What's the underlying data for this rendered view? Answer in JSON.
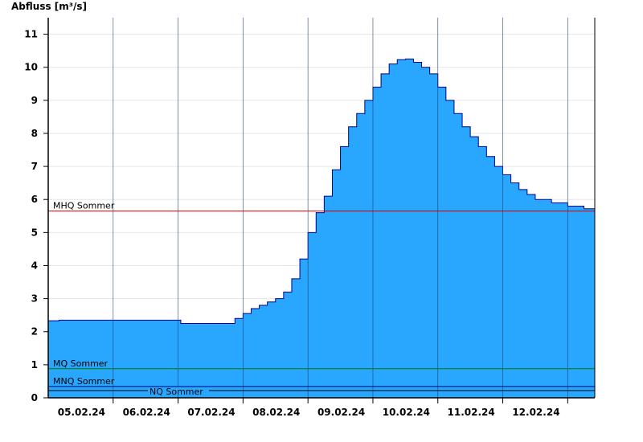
{
  "chart_data": {
    "type": "area",
    "title": "",
    "xlabel": "",
    "ylabel": "Abfluss [m³/s]",
    "ylim": [
      0,
      11.5
    ],
    "yticks": [
      0,
      1,
      2,
      3,
      4,
      5,
      6,
      7,
      8,
      9,
      10,
      11
    ],
    "x_domain": [
      "04.02.24 12:00",
      "12.02.24 22:00"
    ],
    "x_tick_labels": [
      "05.02.24",
      "06.02.24",
      "07.02.24",
      "08.02.24",
      "09.02.24",
      "10.02.24",
      "11.02.24",
      "12.02.24"
    ],
    "day_boundaries": [
      "05.02.24 12:00",
      "06.02.24 12:00",
      "07.02.24 12:00",
      "08.02.24 12:00",
      "09.02.24 12:00",
      "10.02.24 12:00",
      "11.02.24 12:00",
      "12.02.24 12:00"
    ],
    "grid": true,
    "fill_color": "#29a7ff",
    "line_color": "#00008b",
    "series": [
      {
        "values": [
          [
            "04.02.24 12:00",
            2.33
          ],
          [
            "04.02.24 16:00",
            2.35
          ],
          [
            "05.02.24 12:00",
            2.35
          ],
          [
            "06.02.24 12:00",
            2.35
          ],
          [
            "06.02.24 13:00",
            2.25
          ],
          [
            "07.02.24 06:00",
            2.25
          ],
          [
            "07.02.24 09:00",
            2.4
          ],
          [
            "07.02.24 12:00",
            2.55
          ],
          [
            "07.02.24 15:00",
            2.7
          ],
          [
            "07.02.24 18:00",
            2.8
          ],
          [
            "07.02.24 21:00",
            2.9
          ],
          [
            "08.02.24 00:00",
            3.0
          ],
          [
            "08.02.24 03:00",
            3.2
          ],
          [
            "08.02.24 06:00",
            3.6
          ],
          [
            "08.02.24 09:00",
            4.2
          ],
          [
            "08.02.24 12:00",
            5.0
          ],
          [
            "08.02.24 15:00",
            5.6
          ],
          [
            "08.02.24 18:00",
            6.1
          ],
          [
            "08.02.24 21:00",
            6.9
          ],
          [
            "09.02.24 00:00",
            7.6
          ],
          [
            "09.02.24 03:00",
            8.2
          ],
          [
            "09.02.24 06:00",
            8.6
          ],
          [
            "09.02.24 09:00",
            9.0
          ],
          [
            "09.02.24 12:00",
            9.4
          ],
          [
            "09.02.24 15:00",
            9.8
          ],
          [
            "09.02.24 18:00",
            10.1
          ],
          [
            "09.02.24 21:00",
            10.23
          ],
          [
            "10.02.24 00:00",
            10.25
          ],
          [
            "10.02.24 03:00",
            10.15
          ],
          [
            "10.02.24 06:00",
            10.0
          ],
          [
            "10.02.24 09:00",
            9.8
          ],
          [
            "10.02.24 12:00",
            9.4
          ],
          [
            "10.02.24 15:00",
            9.0
          ],
          [
            "10.02.24 18:00",
            8.6
          ],
          [
            "10.02.24 21:00",
            8.2
          ],
          [
            "11.02.24 00:00",
            7.9
          ],
          [
            "11.02.24 03:00",
            7.6
          ],
          [
            "11.02.24 06:00",
            7.3
          ],
          [
            "11.02.24 09:00",
            7.0
          ],
          [
            "11.02.24 12:00",
            6.75
          ],
          [
            "11.02.24 15:00",
            6.5
          ],
          [
            "11.02.24 18:00",
            6.3
          ],
          [
            "11.02.24 21:00",
            6.15
          ],
          [
            "12.02.24 00:00",
            6.0
          ],
          [
            "12.02.24 06:00",
            5.9
          ],
          [
            "12.02.24 12:00",
            5.8
          ],
          [
            "12.02.24 18:00",
            5.72
          ],
          [
            "12.02.24 22:00",
            5.65
          ]
        ]
      }
    ],
    "reference_lines": [
      {
        "label": "MHQ Sommer",
        "value": 5.65,
        "color": "#cc0000"
      },
      {
        "label": "MQ Sommer",
        "value": 0.88,
        "color": "#007700"
      },
      {
        "label": "MNQ Sommer",
        "value": 0.34,
        "color": "#000080"
      },
      {
        "label": "NQ Sommer",
        "value": 0.22,
        "color": "#000000"
      }
    ]
  }
}
